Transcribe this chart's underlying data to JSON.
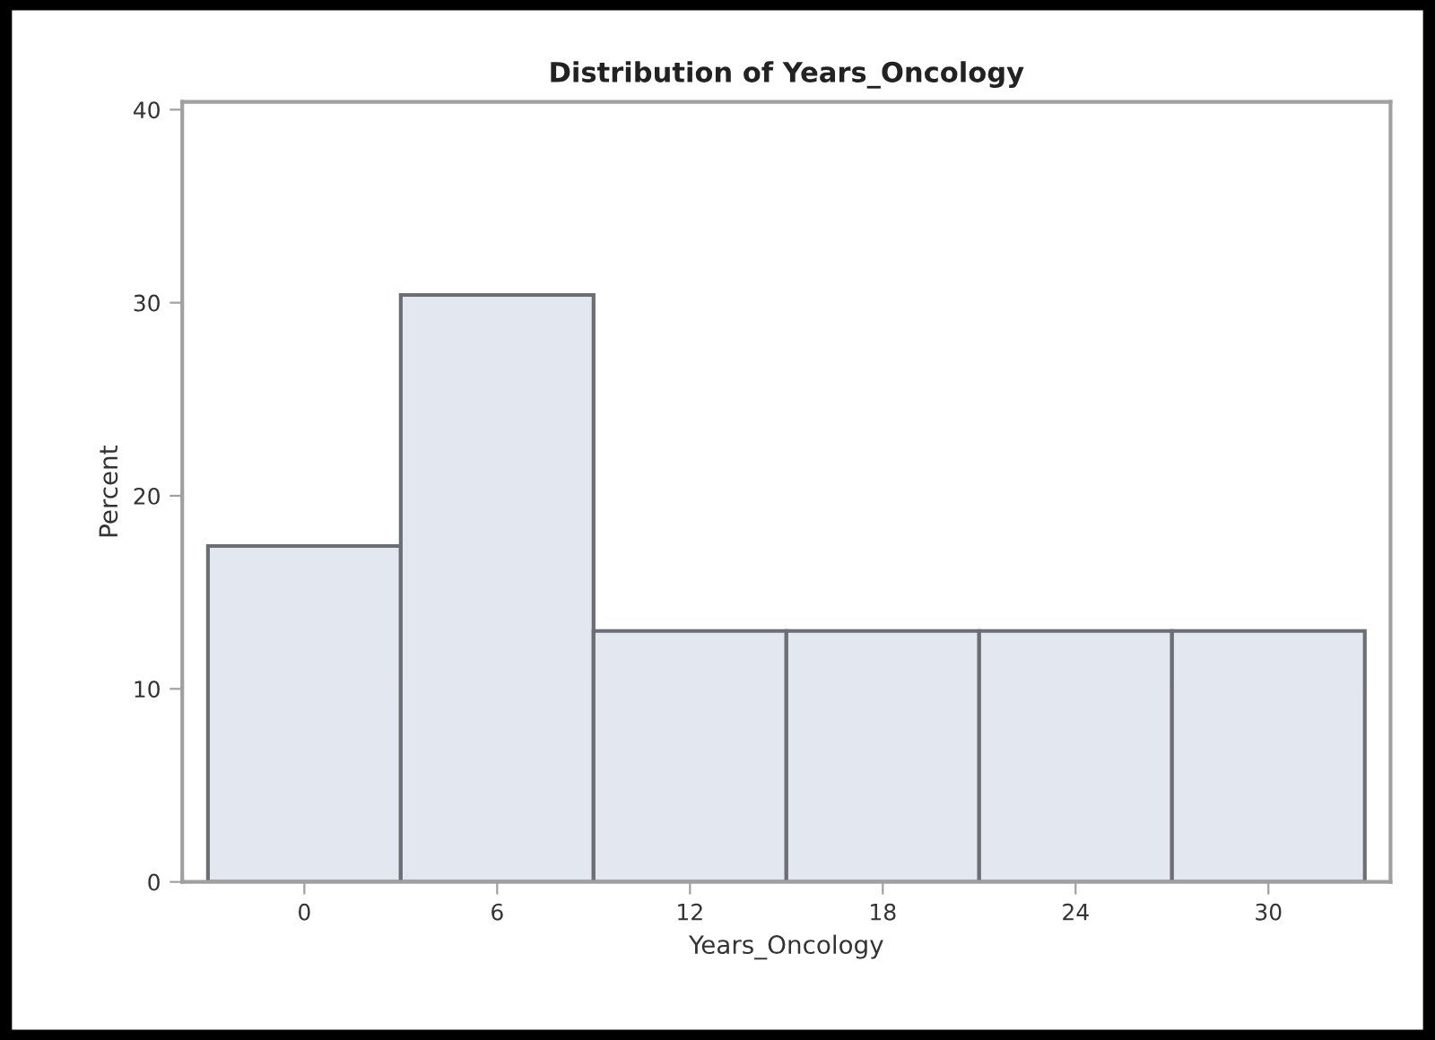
{
  "chart_data": {
    "type": "histogram",
    "title": "Distribution of Years_Oncology",
    "xlabel": "Years_Oncology",
    "ylabel": "Percent",
    "bins": [
      -3,
      3,
      9,
      15,
      21,
      27,
      33
    ],
    "values": [
      17.4,
      30.4,
      13.0,
      13.0,
      13.0,
      13.0
    ],
    "color": "#e3e7f0",
    "xlim": [
      -3.8,
      33.8
    ],
    "xticks": [
      0,
      6,
      12,
      18,
      24,
      30
    ],
    "ylim": [
      0,
      40.4
    ],
    "yticks": [
      0,
      10,
      20,
      30,
      40
    ],
    "grid": false
  }
}
